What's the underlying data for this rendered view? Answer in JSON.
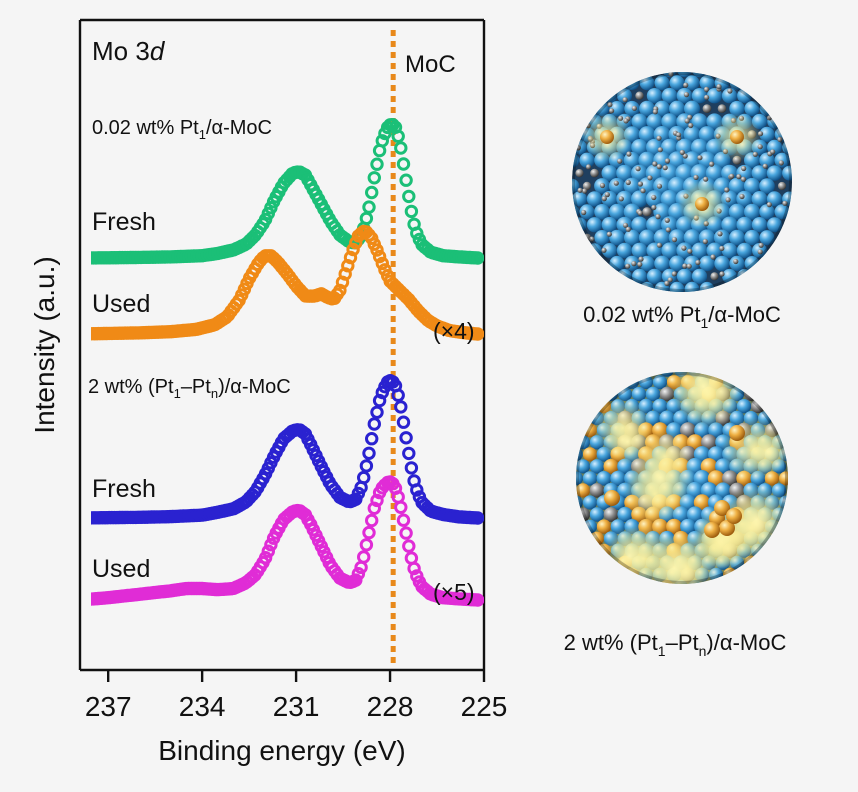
{
  "figure": {
    "panel_title_main": "Mo 3",
    "panel_title_italic": "d",
    "reference_label": "MoC",
    "ylabel": "Intensity (a.u.)",
    "xlabel": "Binding energy (eV)",
    "group_labels": [
      {
        "prefix": "0.02 wt% Pt",
        "sub": "1",
        "suffix": "/α-MoC"
      },
      {
        "prefix": "2 wt% (Pt",
        "sub": "1",
        "mid": "–Pt",
        "sub2": "n",
        "suffix": ")/α-MoC"
      }
    ],
    "models": [
      {
        "prefix": "0.02 wt% Pt",
        "sub": "1",
        "suffix": "/α-MoC"
      },
      {
        "prefix": "2 wt% (Pt",
        "sub": "1",
        "mid": "–Pt",
        "sub2": "n",
        "suffix": ")/α-MoC"
      }
    ]
  },
  "chart_data": {
    "type": "scatter",
    "title": "Mo 3d",
    "xlabel": "Binding energy (eV)",
    "ylabel": "Intensity (a.u.)",
    "x_reversed": true,
    "xlim": [
      237.9,
      225
    ],
    "x_ticks": [
      237,
      234,
      231,
      228,
      225
    ],
    "reference_line": {
      "x": 227.9,
      "label": "MoC",
      "color": "#e8891a"
    },
    "series": [
      {
        "name": "Fresh",
        "group": "0.02 wt% Pt1/α-MoC",
        "color": "#1bbf77",
        "multiplier": "",
        "baseline_y": 258,
        "points": [
          [
            237.9,
            0
          ],
          [
            237,
            0.2
          ],
          [
            236,
            0.5
          ],
          [
            235,
            1
          ],
          [
            234,
            2
          ],
          [
            233.5,
            4
          ],
          [
            233,
            7
          ],
          [
            232.6,
            12
          ],
          [
            232.3,
            20
          ],
          [
            232,
            32
          ],
          [
            231.7,
            50
          ],
          [
            231.4,
            65
          ],
          [
            231.1,
            74
          ],
          [
            230.9,
            75
          ],
          [
            230.7,
            72
          ],
          [
            230.5,
            62
          ],
          [
            230.2,
            47
          ],
          [
            229.9,
            32
          ],
          [
            229.6,
            20
          ],
          [
            229.3,
            14
          ],
          [
            229.1,
            13
          ],
          [
            228.9,
            20
          ],
          [
            228.7,
            40
          ],
          [
            228.5,
            70
          ],
          [
            228.3,
            98
          ],
          [
            228.1,
            113
          ],
          [
            227.95,
            117
          ],
          [
            227.8,
            113
          ],
          [
            227.65,
            95
          ],
          [
            227.5,
            70
          ],
          [
            227.35,
            45
          ],
          [
            227.2,
            25
          ],
          [
            227,
            12
          ],
          [
            226.7,
            5
          ],
          [
            226.3,
            2
          ],
          [
            225.8,
            1
          ],
          [
            225.2,
            0
          ]
        ]
      },
      {
        "name": "Used",
        "group": "0.02 wt% Pt1/α-MoC",
        "color": "#f08a16",
        "multiplier": "(×4)",
        "baseline_y": 334,
        "points": [
          [
            237.9,
            0
          ],
          [
            237,
            0.5
          ],
          [
            236,
            1
          ],
          [
            235,
            2
          ],
          [
            234.2,
            4
          ],
          [
            233.6,
            8
          ],
          [
            233.2,
            15
          ],
          [
            232.8,
            30
          ],
          [
            232.5,
            48
          ],
          [
            232.2,
            62
          ],
          [
            232,
            68
          ],
          [
            231.8,
            68
          ],
          [
            231.6,
            63
          ],
          [
            231.3,
            53
          ],
          [
            231,
            42
          ],
          [
            230.7,
            33
          ],
          [
            230.4,
            33
          ],
          [
            230.2,
            35
          ],
          [
            230,
            32
          ],
          [
            229.8,
            30
          ],
          [
            229.6,
            38
          ],
          [
            229.4,
            55
          ],
          [
            229.2,
            72
          ],
          [
            229,
            86
          ],
          [
            228.8,
            90
          ],
          [
            228.6,
            84
          ],
          [
            228.4,
            72
          ],
          [
            228.2,
            58
          ],
          [
            228,
            46
          ],
          [
            227.7,
            38
          ],
          [
            227.4,
            30
          ],
          [
            227.1,
            20
          ],
          [
            226.8,
            12
          ],
          [
            226.5,
            7
          ],
          [
            226.1,
            3
          ],
          [
            225.6,
            1
          ],
          [
            225.2,
            0
          ]
        ]
      },
      {
        "name": "Fresh",
        "group": "2 wt% (Pt1–Ptn)/α-MoC",
        "color": "#2a22d0",
        "multiplier": "",
        "baseline_y": 518,
        "points": [
          [
            237.9,
            0
          ],
          [
            237,
            0.3
          ],
          [
            236,
            0.6
          ],
          [
            235,
            1.2
          ],
          [
            234,
            2.5
          ],
          [
            233.5,
            5
          ],
          [
            233,
            8
          ],
          [
            232.6,
            14
          ],
          [
            232.3,
            23
          ],
          [
            232,
            37
          ],
          [
            231.7,
            54
          ],
          [
            231.4,
            69
          ],
          [
            231.1,
            76
          ],
          [
            230.9,
            77
          ],
          [
            230.7,
            73
          ],
          [
            230.5,
            62
          ],
          [
            230.2,
            45
          ],
          [
            229.9,
            29
          ],
          [
            229.6,
            18
          ],
          [
            229.3,
            14
          ],
          [
            229.1,
            16
          ],
          [
            228.9,
            28
          ],
          [
            228.7,
            52
          ],
          [
            228.5,
            82
          ],
          [
            228.3,
            106
          ],
          [
            228.1,
            118
          ],
          [
            227.95,
            120
          ],
          [
            227.8,
            114
          ],
          [
            227.65,
            96
          ],
          [
            227.5,
            72
          ],
          [
            227.35,
            48
          ],
          [
            227.2,
            28
          ],
          [
            227,
            14
          ],
          [
            226.7,
            6
          ],
          [
            226.3,
            3
          ],
          [
            225.8,
            1
          ],
          [
            225.2,
            0
          ]
        ]
      },
      {
        "name": "Used",
        "group": "2 wt% (Pt1–Ptn)/α-MoC",
        "color": "#e02cd6",
        "multiplier": "(×5)",
        "baseline_y": 600,
        "points": [
          [
            237.9,
            0
          ],
          [
            237,
            2
          ],
          [
            236,
            5
          ],
          [
            235,
            8
          ],
          [
            234.5,
            10
          ],
          [
            234,
            10
          ],
          [
            233.5,
            9
          ],
          [
            233,
            10
          ],
          [
            232.6,
            15
          ],
          [
            232.3,
            22
          ],
          [
            232,
            35
          ],
          [
            231.7,
            55
          ],
          [
            231.4,
            70
          ],
          [
            231.1,
            77
          ],
          [
            230.9,
            78
          ],
          [
            230.7,
            74
          ],
          [
            230.5,
            64
          ],
          [
            230.2,
            47
          ],
          [
            229.9,
            30
          ],
          [
            229.6,
            19
          ],
          [
            229.3,
            15
          ],
          [
            229.1,
            17
          ],
          [
            228.9,
            30
          ],
          [
            228.7,
            55
          ],
          [
            228.5,
            80
          ],
          [
            228.3,
            96
          ],
          [
            228.1,
            102
          ],
          [
            227.95,
            103
          ],
          [
            227.8,
            96
          ],
          [
            227.65,
            80
          ],
          [
            227.5,
            60
          ],
          [
            227.35,
            40
          ],
          [
            227.2,
            24
          ],
          [
            227,
            12
          ],
          [
            226.7,
            5
          ],
          [
            226.3,
            2
          ],
          [
            225.8,
            1
          ],
          [
            225.2,
            0
          ]
        ]
      }
    ],
    "grid": false,
    "legend": "none"
  }
}
